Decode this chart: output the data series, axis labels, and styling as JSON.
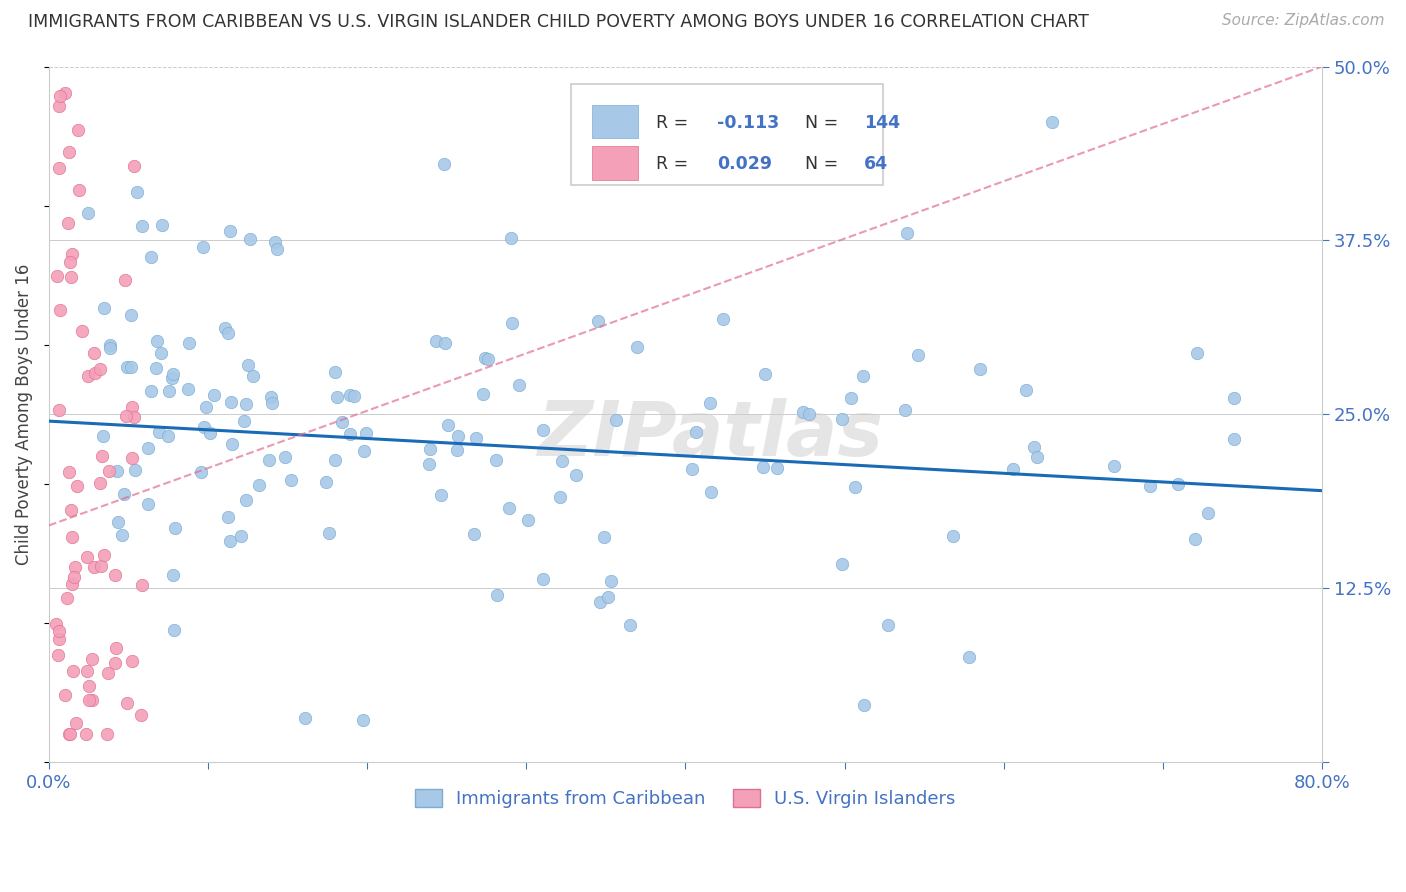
{
  "title": "IMMIGRANTS FROM CARIBBEAN VS U.S. VIRGIN ISLANDER CHILD POVERTY AMONG BOYS UNDER 16 CORRELATION CHART",
  "source": "Source: ZipAtlas.com",
  "ylabel": "Child Poverty Among Boys Under 16",
  "xlim": [
    0.0,
    0.8
  ],
  "ylim": [
    0.0,
    0.5
  ],
  "xticks": [
    0.0,
    0.1,
    0.2,
    0.3,
    0.4,
    0.5,
    0.6,
    0.7,
    0.8
  ],
  "xticklabels": [
    "0.0%",
    "",
    "",
    "",
    "",
    "",
    "",
    "",
    "80.0%"
  ],
  "yticks": [
    0.0,
    0.125,
    0.25,
    0.375,
    0.5
  ],
  "yticklabels": [
    "",
    "12.5%",
    "25.0%",
    "37.5%",
    "50.0%"
  ],
  "series1_R": -0.113,
  "series1_N": 144,
  "series2_R": 0.029,
  "series2_N": 64,
  "series1_color": "#a8c8e8",
  "series1_edge_color": "#7aadd4",
  "series1_line_color": "#1a6bb5",
  "series2_color": "#f4a0b8",
  "series2_edge_color": "#e07090",
  "series2_line_color": "#e07090",
  "series1_label": "Immigrants from Caribbean",
  "series2_label": "U.S. Virgin Islanders",
  "watermark": "ZIPatlas",
  "background_color": "#ffffff",
  "grid_color": "#cccccc",
  "title_color": "#333333",
  "axis_color": "#4472c4",
  "legend_R_color": "#4472c4",
  "legend_text_color": "#333333"
}
